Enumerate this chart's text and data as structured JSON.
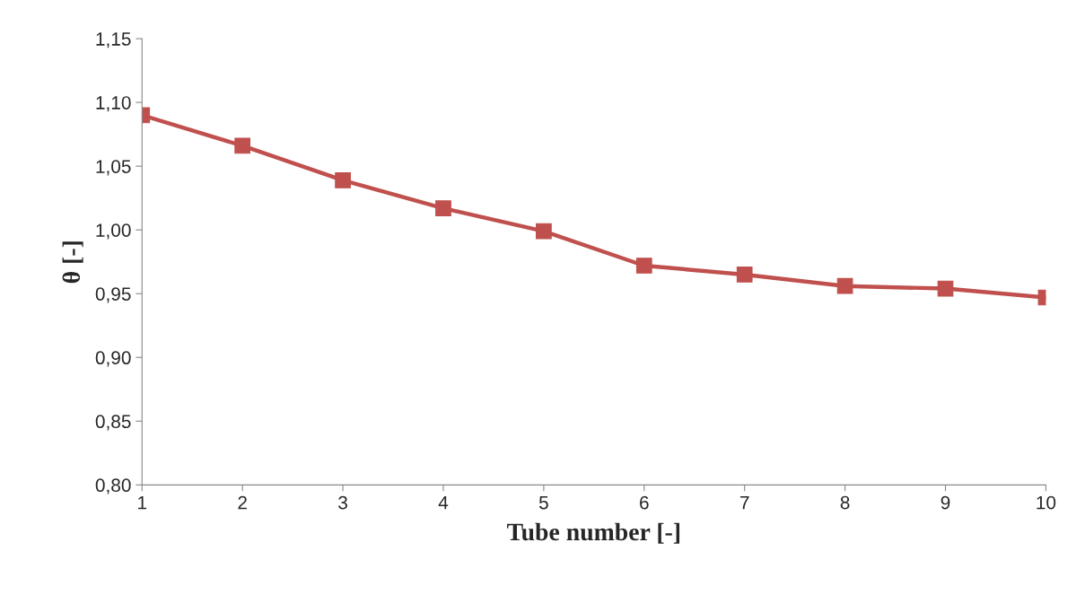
{
  "chart_data": {
    "type": "line",
    "xlabel": "Tube number [-]",
    "ylabel": "θ [-]",
    "x": [
      1,
      2,
      3,
      4,
      5,
      6,
      7,
      8,
      9,
      10
    ],
    "series": [
      {
        "color": "#c0504d",
        "values": [
          1.09,
          1.066,
          1.039,
          1.017,
          0.999,
          0.972,
          0.965,
          0.956,
          0.954,
          0.947
        ]
      }
    ],
    "xlim": [
      1,
      10
    ],
    "xticks": [
      1,
      2,
      3,
      4,
      5,
      6,
      7,
      8,
      9,
      10
    ],
    "ylim": [
      0.8,
      1.15
    ],
    "yticks": [
      {
        "value": 0.8,
        "label": "0,80"
      },
      {
        "value": 0.85,
        "label": "0,85"
      },
      {
        "value": 0.9,
        "label": "0,90"
      },
      {
        "value": 0.95,
        "label": "0,95"
      },
      {
        "value": 1.0,
        "label": "1,00"
      },
      {
        "value": 1.05,
        "label": "1,05"
      },
      {
        "value": 1.1,
        "label": "1,10"
      },
      {
        "value": 1.15,
        "label": "1,15"
      }
    ],
    "marker": "square",
    "line_style": "solid",
    "grid": false,
    "legend": false
  }
}
